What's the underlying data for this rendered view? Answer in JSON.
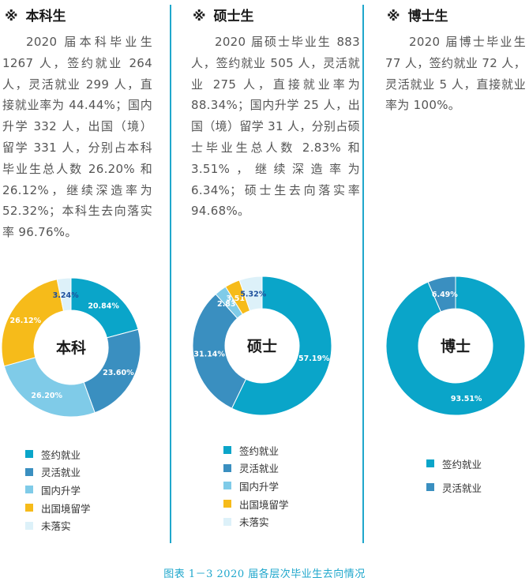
{
  "mark": "※",
  "columns": [
    {
      "title": "本科生",
      "paragraph": "2020 届本科毕业生 1267 人，签约就业 264 人，灵活就业 299 人，直接就业率为 44.44%；国内升学 332 人，出国（境）留学 331 人，分别占本科毕业生总人数 26.20% 和 26.12%，继续深造率为 52.32%；本科生去向落实率 96.76%。",
      "center_label": "本科",
      "legend": [
        "签约就业",
        "灵活就业",
        "国内升学",
        "出国境留学",
        "未落实"
      ]
    },
    {
      "title": "硕士生",
      "paragraph": "2020 届硕士毕业生 883 人，签约就业 505 人，灵活就业 275 人，直接就业率为 88.34%；国内升学 25 人，出国（境）留学 31 人，分别占硕士毕业生总人数 2.83% 和 3.51%，继续深造率为 6.34%；硕士生去向落实率 94.68%。",
      "center_label": "硕士",
      "legend": [
        "签约就业",
        "灵活就业",
        "国内升学",
        "出国境留学",
        "未落实"
      ]
    },
    {
      "title": "博士生",
      "paragraph": "2020 届博士毕业生 77 人，签约就业 72 人，灵活就业 5 人，直接就业率为 100%。",
      "center_label": "博士",
      "legend": [
        "签约就业",
        "灵活就业"
      ]
    }
  ],
  "caption": "图表 1－3 2020 届各层次毕业生去向情况",
  "colors": {
    "签约就业": "#0aa5c9",
    "灵活就业": "#3a8fc0",
    "国内升学": "#7fcbe8",
    "出国境留学": "#f6bb1a",
    "未落实": "#ddf1f9",
    "accent": "#1fa7cc"
  },
  "chart_data": [
    {
      "type": "pie",
      "variant": "donut",
      "title": "本科",
      "categories": [
        "签约就业",
        "灵活就业",
        "国内升学",
        "出国境留学",
        "未落实"
      ],
      "values": [
        20.84,
        23.6,
        26.2,
        26.12,
        3.24
      ],
      "labels": [
        "20.84%",
        "23.60%",
        "26.20%",
        "26.12%",
        "3.24%"
      ]
    },
    {
      "type": "pie",
      "variant": "donut",
      "title": "硕士",
      "categories": [
        "签约就业",
        "灵活就业",
        "国内升学",
        "出国境留学",
        "未落实"
      ],
      "values": [
        57.19,
        31.14,
        2.83,
        3.51,
        5.32
      ],
      "labels": [
        "57.19%",
        "31.14%",
        "2.83%",
        "3.51%",
        "5.32%"
      ]
    },
    {
      "type": "pie",
      "variant": "donut",
      "title": "博士",
      "categories": [
        "签约就业",
        "灵活就业"
      ],
      "values": [
        93.51,
        6.49
      ],
      "labels": [
        "93.51%",
        "6.49%"
      ]
    }
  ]
}
